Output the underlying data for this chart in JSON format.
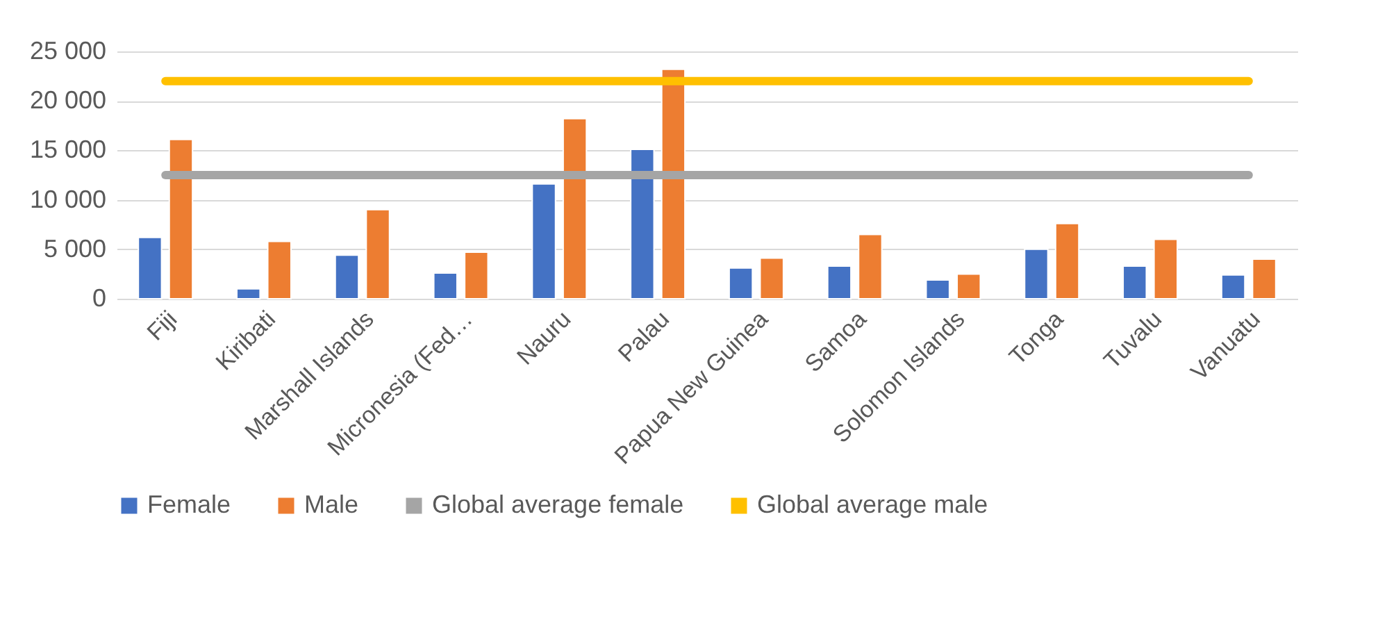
{
  "chart_data": {
    "type": "bar",
    "categories": [
      "Fiji",
      "Kiribati",
      "Marshall Islands",
      "Micronesia (Fed…",
      "Nauru",
      "Palau",
      "Papua New Guinea",
      "Samoa",
      "Solomon Islands",
      "Tonga",
      "Tuvalu",
      "Vanuatu"
    ],
    "series": [
      {
        "name": "Female",
        "type": "bar",
        "color": "#4472c4",
        "values": [
          6200,
          1000,
          4400,
          2600,
          11600,
          15100,
          3100,
          3300,
          1900,
          5000,
          3300,
          2400
        ]
      },
      {
        "name": "Male",
        "type": "bar",
        "color": "#ed7d31",
        "values": [
          16100,
          5800,
          9000,
          4700,
          18200,
          23200,
          4100,
          6500,
          2500,
          7600,
          6000,
          4000
        ]
      },
      {
        "name": "Global average female",
        "type": "line",
        "color": "#a5a5a5",
        "values": [
          12500,
          12500,
          12500,
          12500,
          12500,
          12500,
          12500,
          12500,
          12500,
          12500,
          12500,
          12500
        ]
      },
      {
        "name": "Global average male",
        "type": "line",
        "color": "#ffc000",
        "values": [
          22000,
          22000,
          22000,
          22000,
          22000,
          22000,
          22000,
          22000,
          22000,
          22000,
          22000,
          22000
        ]
      }
    ],
    "ylim": [
      0,
      25000
    ],
    "yticks": [
      {
        "value": 0,
        "label": "0"
      },
      {
        "value": 5000,
        "label": "5 000"
      },
      {
        "value": 10000,
        "label": "10 000"
      },
      {
        "value": 15000,
        "label": "15 000"
      },
      {
        "value": 20000,
        "label": "20 000"
      },
      {
        "value": 25000,
        "label": "25 000"
      }
    ],
    "grid": "y",
    "legend": "bottom"
  }
}
